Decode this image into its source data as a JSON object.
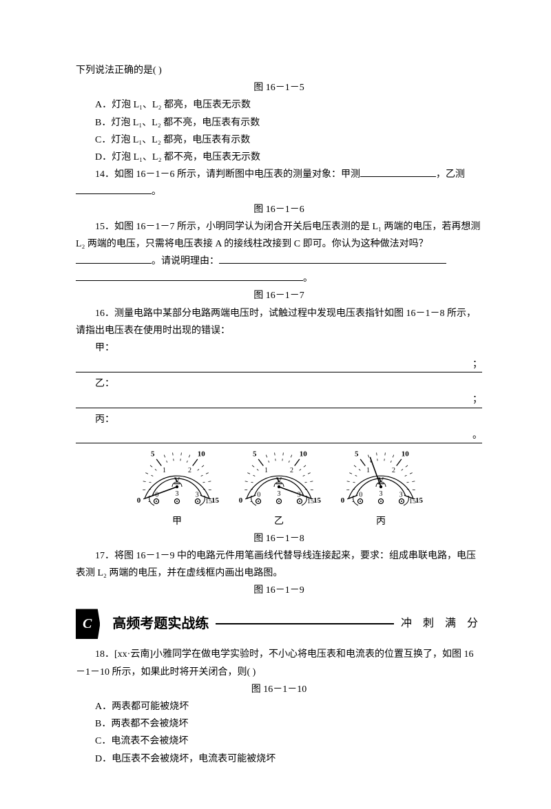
{
  "intro": "下列说法正确的是(        )",
  "fig5": "图 16－1－5",
  "choices5": {
    "A": "A．灯泡 L₁、L₂ 都亮，电压表无示数",
    "B": "B．灯泡 L₁、L₂ 都不亮，电压表有示数",
    "C": "C．灯泡 L₁、L₂ 都亮，电压表有示数",
    "D": "D．灯泡 L₁、L₂ 都不亮，电压表无示数"
  },
  "q14_a": "14．如图 16－1－6 所示，请判断图中电压表的测量对象：甲测",
  "q14_b": "，乙测",
  "q14_c": "。",
  "fig6": "图 16－1－6",
  "q15_a": "15．如图 16－1－7 所示，小明同学认为闭合开关后电压表测的是 L₁ 两端的电压，若再想测 L₂ 两端的电压，只需将电压表接 A 的接线柱改接到 C 即可。你认为这种做法对吗？",
  "q15_b": "。请说明理由：",
  "q15_c": "。",
  "fig7": "图 16－1－7",
  "q16_a": "16．测量电路中某部分电路两端电压时，试触过程中发现电压表指针如图 16－1－8 所示，请指出电压表在使用时出现的错误：",
  "q16_jia": "甲：",
  "q16_yi": "乙：",
  "q16_bing": "丙：",
  "semicolon": "；",
  "period": "。",
  "meters": {
    "ticks_top": [
      "0",
      "5",
      "10",
      "15"
    ],
    "ticks_bot": [
      "0",
      "1",
      "2",
      "3"
    ],
    "v_label": "V",
    "neg": "-",
    "range1": "3",
    "range2": "15",
    "labels": {
      "a": "甲",
      "b": "乙",
      "c": "丙"
    },
    "needle_angles": {
      "a": 200,
      "b": -20,
      "c": 110
    },
    "arc_color": "#000000",
    "tick_color": "#000000",
    "needle_color": "#000000"
  },
  "fig8": "图 16－1－8",
  "q17": "17．将图 16－1－9 中的电路元件用笔画线代替导线连接起来，要求：组成串联电路，电压表测 L₂ 两端的电压，并在虚线框内画出电路图。",
  "fig9": "图 16－1－9",
  "banner": {
    "c": "C",
    "title": "高频考题实战练",
    "right": "冲 刺 满 分"
  },
  "q18": "18．[xx·云南]小雅同学在做电学实验时，不小心将电压表和电流表的位置互换了，如图 16－1－10 所示，如果此时将开关闭合，则(        )",
  "fig10": "图 16－1－10",
  "choices18": {
    "A": "A．两表都可能被烧坏",
    "B": "B．两表都不会被烧坏",
    "C": "C．电流表不会被烧坏",
    "D": "D．电压表不会被烧坏，电流表可能被烧坏"
  }
}
